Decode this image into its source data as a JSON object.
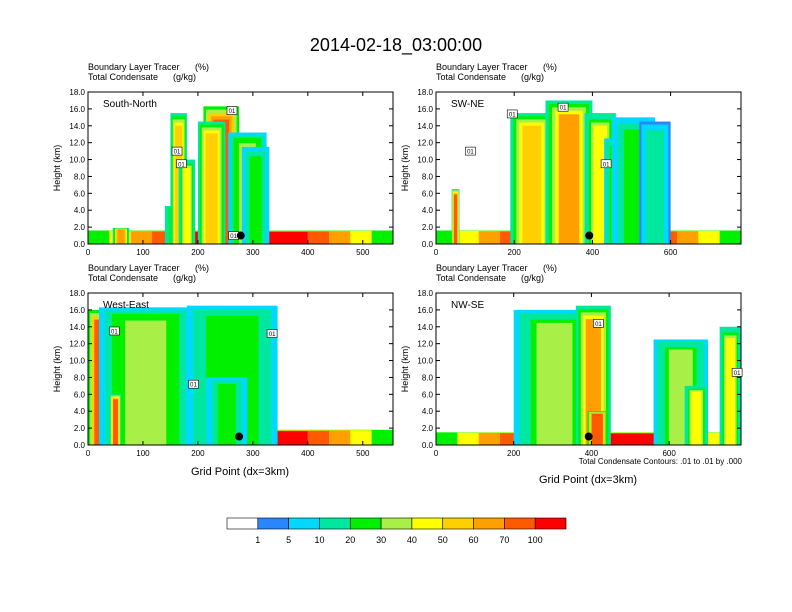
{
  "figure_title": "2014-02-18_03:00:00",
  "xlabel": "Grid Point (dx=3km)",
  "contour_note": "Total Condensate Contours: .01 to .01 by .000",
  "colorbar": {
    "labels": [
      "1",
      "5",
      "10",
      "20",
      "30",
      "40",
      "50",
      "60",
      "70",
      "100"
    ],
    "colors": [
      "#ffffff",
      "#2a86ff",
      "#00d8ff",
      "#00e8a0",
      "#00f000",
      "#a8f048",
      "#ffff00",
      "#ffd000",
      "#ffa000",
      "#ff5a00",
      "#ff0000"
    ]
  },
  "chart_data": [
    {
      "type": "heatmap",
      "panel_label": "South-North",
      "subtitle_left_1": "Boundary Layer Tracer",
      "subtitle_right_1": "(%)",
      "subtitle_left_2": "Total Condensate",
      "subtitle_right_2": "(g/kg)",
      "ylabel": "Height (km)",
      "xlim": [
        0,
        555
      ],
      "ylim": [
        0,
        18
      ],
      "xticks": [
        0,
        100,
        200,
        300,
        400,
        500
      ],
      "yticks": [
        "0.0",
        "2.0",
        "4.0",
        "6.0",
        "8.0",
        "10.0",
        "12.0",
        "14.0",
        "16.0",
        "18.0"
      ],
      "contour_labels": [
        {
          "text": "01",
          "x": 262,
          "y": 15.8
        },
        {
          "text": "01",
          "x": 162,
          "y": 11.0
        },
        {
          "text": "01",
          "x": 170,
          "y": 9.5
        },
        {
          "text": "01",
          "x": 265,
          "y": 1.0
        }
      ],
      "marker": {
        "x": 278,
        "y": 1.0
      },
      "clouds": [
        {
          "x0": 0,
          "x1": 555,
          "top": 1.6,
          "peak": 100
        },
        {
          "x0": 45,
          "x1": 75,
          "top": 1.9,
          "peak": 65
        },
        {
          "x0": 140,
          "x1": 190,
          "top": 4.5,
          "peak": 40
        },
        {
          "x0": 150,
          "x1": 180,
          "top": 15.5,
          "peak": 55
        },
        {
          "x0": 165,
          "x1": 195,
          "top": 10.0,
          "peak": 45
        },
        {
          "x0": 210,
          "x1": 275,
          "top": 16.3,
          "peak": 80
        },
        {
          "x0": 200,
          "x1": 250,
          "top": 14.5,
          "peak": 55
        },
        {
          "x0": 255,
          "x1": 325,
          "top": 13.2,
          "peak": 35
        },
        {
          "x0": 280,
          "x1": 330,
          "top": 11.5,
          "peak": 22
        }
      ]
    },
    {
      "type": "heatmap",
      "panel_label": "SW-NE",
      "subtitle_left_1": "Boundary Layer Tracer",
      "subtitle_right_1": "(%)",
      "subtitle_left_2": "Total Condensate",
      "subtitle_right_2": "(g/kg)",
      "ylabel": "Height (km)",
      "xlim": [
        0,
        780
      ],
      "ylim": [
        0,
        18
      ],
      "xticks": [
        0,
        200,
        400,
        600
      ],
      "yticks": [
        "0.0",
        "2.0",
        "4.0",
        "6.0",
        "8.0",
        "10.0",
        "12.0",
        "14.0",
        "16.0",
        "18.0"
      ],
      "contour_labels": [
        {
          "text": "01",
          "x": 195,
          "y": 15.4
        },
        {
          "text": "01",
          "x": 325,
          "y": 16.2
        },
        {
          "text": "01",
          "x": 88,
          "y": 11.0
        },
        {
          "text": "01",
          "x": 435,
          "y": 9.5
        }
      ],
      "marker": {
        "x": 392,
        "y": 1.0
      },
      "clouds": [
        {
          "x0": 0,
          "x1": 780,
          "top": 1.6,
          "peak": 100
        },
        {
          "x0": 40,
          "x1": 60,
          "top": 6.5,
          "peak": 70
        },
        {
          "x0": 190,
          "x1": 300,
          "top": 15.5,
          "peak": 55
        },
        {
          "x0": 280,
          "x1": 400,
          "top": 17.0,
          "peak": 60
        },
        {
          "x0": 380,
          "x1": 460,
          "top": 15.5,
          "peak": 40
        },
        {
          "x0": 430,
          "x1": 500,
          "top": 12.5,
          "peak": 30
        },
        {
          "x0": 450,
          "x1": 560,
          "top": 15.0,
          "peak": 20
        },
        {
          "x0": 520,
          "x1": 600,
          "top": 14.5,
          "peak": 15
        }
      ]
    },
    {
      "type": "heatmap",
      "panel_label": "West-East",
      "subtitle_left_1": "Boundary Layer Tracer",
      "subtitle_right_1": "(%)",
      "subtitle_left_2": "Total Condensate",
      "subtitle_right_2": "(g/kg)",
      "ylabel": "Height (km)",
      "xlim": [
        0,
        555
      ],
      "ylim": [
        0,
        18
      ],
      "xticks": [
        0,
        100,
        200,
        300,
        400,
        500
      ],
      "yticks": [
        "0.0",
        "2.0",
        "4.0",
        "6.0",
        "8.0",
        "10.0",
        "12.0",
        "14.0",
        "16.0",
        "18.0"
      ],
      "contour_labels": [
        {
          "text": "01",
          "x": 48,
          "y": 13.5
        },
        {
          "text": "01",
          "x": 335,
          "y": 13.2
        },
        {
          "text": "01",
          "x": 192,
          "y": 7.2
        }
      ],
      "marker": {
        "x": 275,
        "y": 1.0
      },
      "clouds": [
        {
          "x0": 0,
          "x1": 555,
          "top": 1.8,
          "peak": 100
        },
        {
          "x0": 0,
          "x1": 55,
          "top": 16.0,
          "peak": 90
        },
        {
          "x0": 20,
          "x1": 190,
          "top": 16.3,
          "peak": 35
        },
        {
          "x0": 180,
          "x1": 345,
          "top": 16.5,
          "peak": 25
        },
        {
          "x0": 40,
          "x1": 60,
          "top": 6.0,
          "peak": 70
        },
        {
          "x0": 215,
          "x1": 290,
          "top": 8.0,
          "peak": 20
        }
      ]
    },
    {
      "type": "heatmap",
      "panel_label": "NW-SE",
      "subtitle_left_1": "Boundary Layer Tracer",
      "subtitle_right_1": "(%)",
      "subtitle_left_2": "Total Condensate",
      "subtitle_right_2": "(g/kg)",
      "ylabel": "Height (km)",
      "xlim": [
        0,
        785
      ],
      "ylim": [
        0,
        18
      ],
      "xticks": [
        0,
        200,
        400,
        600
      ],
      "yticks": [
        "0.0",
        "2.0",
        "4.0",
        "6.0",
        "8.0",
        "10.0",
        "12.0",
        "14.0",
        "16.0",
        "18.0"
      ],
      "contour_labels": [
        {
          "text": "01",
          "x": 418,
          "y": 14.4
        },
        {
          "text": "01",
          "x": 775,
          "y": 8.6
        }
      ],
      "marker": {
        "x": 393,
        "y": 1.0
      },
      "clouds": [
        {
          "x0": 0,
          "x1": 785,
          "top": 1.5,
          "peak": 100
        },
        {
          "x0": 200,
          "x1": 410,
          "top": 16.0,
          "peak": 30
        },
        {
          "x0": 360,
          "x1": 450,
          "top": 16.5,
          "peak": 60
        },
        {
          "x0": 390,
          "x1": 440,
          "top": 4.0,
          "peak": 90
        },
        {
          "x0": 560,
          "x1": 700,
          "top": 12.5,
          "peak": 30
        },
        {
          "x0": 730,
          "x1": 785,
          "top": 14.0,
          "peak": 40
        },
        {
          "x0": 640,
          "x1": 700,
          "top": 7.0,
          "peak": 45
        }
      ]
    }
  ]
}
